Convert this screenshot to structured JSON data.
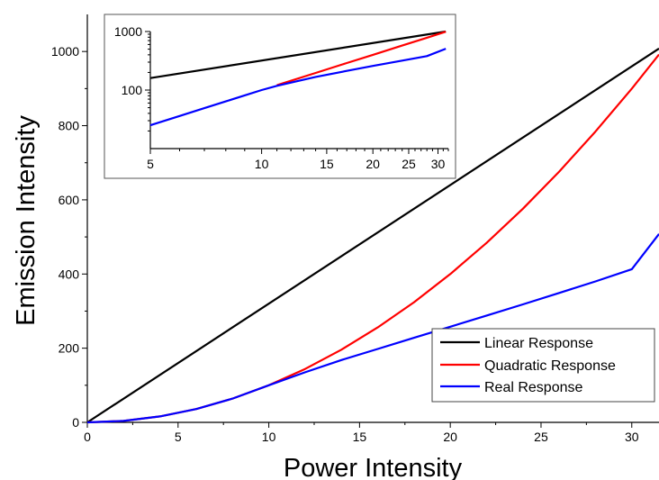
{
  "chart_data": [
    {
      "type": "line",
      "xlabel": "Power Intensity",
      "ylabel": "Emission Intensity",
      "xlim": [
        0,
        31.5
      ],
      "ylim": [
        0,
        1100
      ],
      "xticks": [
        0,
        5,
        10,
        15,
        20,
        25,
        30
      ],
      "yticks": [
        0,
        200,
        400,
        600,
        800,
        1000
      ],
      "legend_position": "bottom-right",
      "grid": false,
      "series": [
        {
          "name": "Linear Response",
          "color": "#000000",
          "x": [
            0,
            31.5
          ],
          "y": [
            0,
            1008
          ]
        },
        {
          "name": "Quadratic Response",
          "color": "#ff0000",
          "x": [
            0,
            2,
            4,
            6,
            8,
            10,
            12,
            14,
            16,
            18,
            20,
            22,
            24,
            26,
            28,
            30,
            31.5
          ],
          "y": [
            0,
            4,
            16,
            36,
            64,
            100,
            144,
            196,
            256,
            324,
            400,
            484,
            576,
            676,
            784,
            900,
            992
          ]
        },
        {
          "name": "Real Response",
          "color": "#0000ff",
          "x": [
            0,
            2,
            4,
            6,
            8,
            10,
            12,
            14,
            16,
            18,
            20,
            22,
            24,
            26,
            28,
            30,
            31.5
          ],
          "y": [
            0,
            4,
            16,
            36,
            64,
            100,
            135,
            168,
            198,
            228,
            258,
            288,
            318,
            349,
            380,
            413,
            508
          ]
        }
      ],
      "legend": [
        "Linear Response",
        "Quadratic Response",
        "Real Response"
      ]
    },
    {
      "type": "line",
      "inset": true,
      "xscale": "log",
      "yscale": "log",
      "xlim": [
        5,
        32
      ],
      "ylim": [
        10,
        1000
      ],
      "xticks": [
        5,
        10,
        15,
        20,
        25,
        30
      ],
      "yticks": [
        100,
        1000
      ],
      "grid": false,
      "series": [
        {
          "color": "#000000",
          "x": [
            5,
            31.5
          ],
          "y": [
            160,
            1000
          ]
        },
        {
          "color": "#ff0000",
          "x": [
            11,
            14,
            17,
            20,
            24,
            28,
            31.5
          ],
          "y": [
            121,
            196,
            289,
            400,
            576,
            784,
            992
          ]
        },
        {
          "color": "#0000ff",
          "x": [
            5,
            6,
            7,
            8,
            9,
            10,
            11,
            14,
            17,
            20,
            24,
            28,
            31.5
          ],
          "y": [
            25,
            36,
            49,
            64,
            81,
            100,
            118,
            168,
            213,
            258,
            318,
            380,
            508
          ]
        }
      ]
    }
  ]
}
